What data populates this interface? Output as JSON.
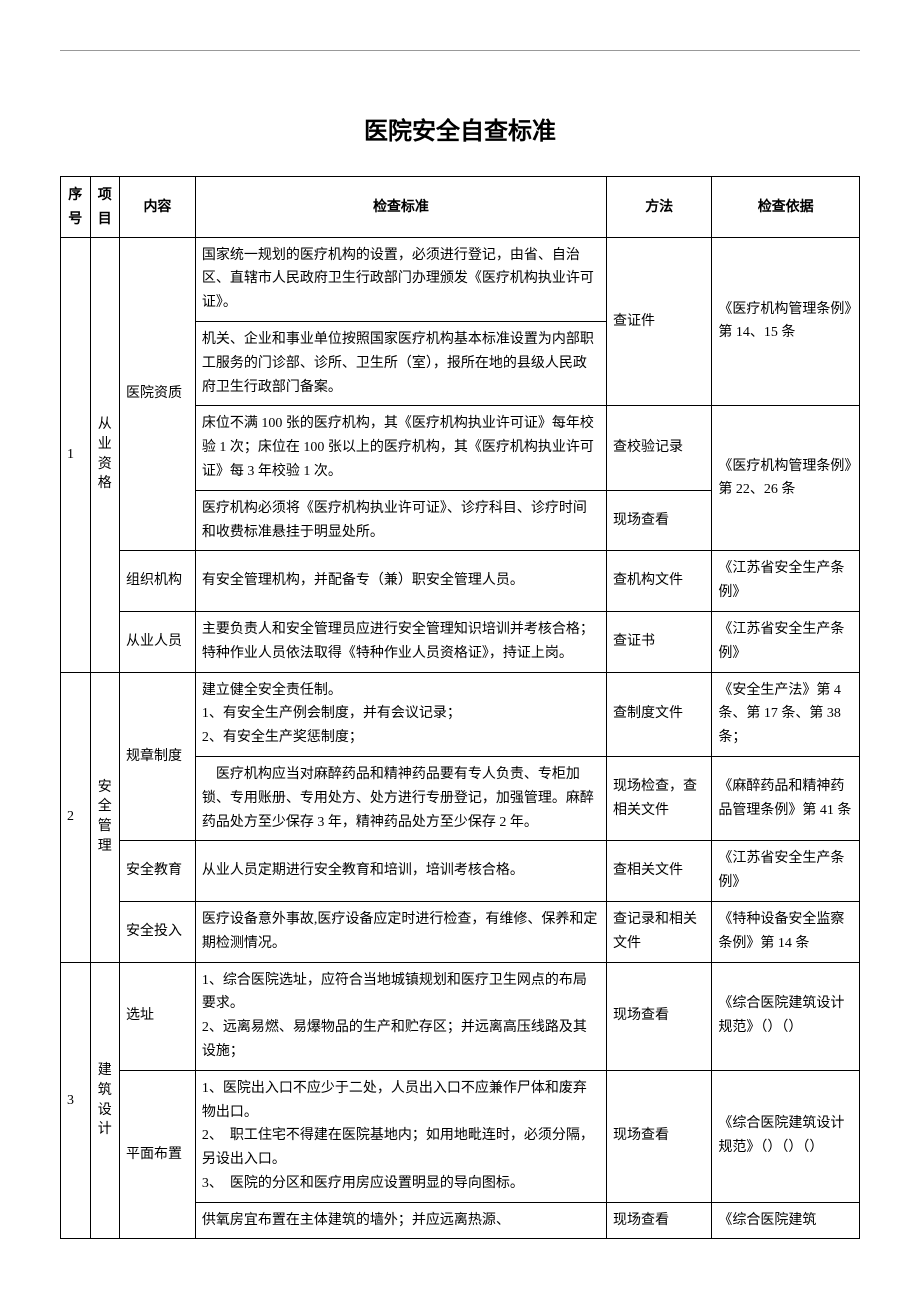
{
  "title": "医院安全自查标准",
  "columns": {
    "seq": "序号",
    "item": "项目",
    "content": "内容",
    "standard": "检查标准",
    "method": "方法",
    "basis": "检查依据"
  },
  "sections": [
    {
      "seq": "1",
      "item": "从业资格",
      "rows": [
        {
          "content": "医院资质",
          "rowspan_content": 4,
          "standard": "国家统一规划的医疗机构的设置，必须进行登记，由省、自治区、直辖市人民政府卫生行政部门办理颁发《医疗机构执业许可证》。",
          "method": "查证件",
          "method_rowspan": 2,
          "basis": "《医疗机构管理条例》第 14、15 条",
          "basis_rowspan": 2
        },
        {
          "standard": "机关、企业和事业单位按照国家医疗机构基本标准设置为内部职工服务的门诊部、诊所、卫生所（室），报所在地的县级人民政府卫生行政部门备案。"
        },
        {
          "standard": "床位不满 100 张的医疗机构，其《医疗机构执业许可证》每年校验 1 次；床位在 100 张以上的医疗机构，其《医疗机构执业许可证》每 3 年校验 1 次。",
          "method": "查校验记录",
          "basis": "《医疗机构管理条例》第 22、26 条",
          "basis_rowspan": 2
        },
        {
          "standard": "医疗机构必须将《医疗机构执业许可证》、诊疗科目、诊疗时间和收费标准悬挂于明显处所。",
          "method": "现场查看"
        },
        {
          "content": "组织机构",
          "standard": "有安全管理机构，并配备专（兼）职安全管理人员。",
          "method": "查机构文件",
          "basis": "《江苏省安全生产条例》"
        },
        {
          "content": "从业人员",
          "standard": "主要负责人和安全管理员应进行安全管理知识培训并考核合格；\n特种作业人员依法取得《特种作业人员资格证》，持证上岗。",
          "method": "查证书",
          "basis": "《江苏省安全生产条例》"
        }
      ]
    },
    {
      "seq": "2",
      "item": "安全管理",
      "rows": [
        {
          "content": "规章制度",
          "rowspan_content": 2,
          "standard": "建立健全安全责任制。\n1、有安全生产例会制度，并有会议记录；\n2、有安全生产奖惩制度；",
          "method": "查制度文件",
          "basis": "《安全生产法》第 4 条、第 17 条、第 38 条；"
        },
        {
          "standard": "　医疗机构应当对麻醉药品和精神药品要有专人负责、专柜加锁、专用账册、专用处方、处方进行专册登记，加强管理。麻醉药品处方至少保存 3 年，精神药品处方至少保存 2 年。",
          "method": "现场检查，查相关文件",
          "basis": "《麻醉药品和精神药品管理条例》第 41 条"
        },
        {
          "content": "安全教育",
          "standard": "从业人员定期进行安全教育和培训，培训考核合格。",
          "method": "查相关文件",
          "basis": "《江苏省安全生产条例》"
        },
        {
          "content": "安全投入",
          "standard": "医疗设备意外事故,医疗设备应定时进行检查，有维修、保养和定期检测情况。",
          "method": "查记录和相关文件",
          "basis": "《特种设备安全监察条例》第 14 条"
        }
      ]
    },
    {
      "seq": "3",
      "item": "建筑设计",
      "rows": [
        {
          "content": "选址",
          "standard": "1、综合医院选址，应符合当地城镇规划和医疗卫生网点的布局要求。\n2、远离易燃、易爆物品的生产和贮存区；并远离高压线路及其设施；",
          "method": "现场查看",
          "basis": "《综合医院建筑设计规范》（）（）"
        },
        {
          "content": "平面布置",
          "rowspan_content": 2,
          "standard": "1、医院出入口不应少于二处，人员出入口不应兼作尸体和废弃物出口。\n2、　职工住宅不得建在医院基地内；如用地毗连时，必须分隔，另设出入口。\n3、　医院的分区和医疗用房应设置明显的导向图标。",
          "method": "现场查看",
          "basis": "《综合医院建筑设计规范》（）（）（）"
        },
        {
          "standard": "供氧房宜布置在主体建筑的墙外；并应远离热源、",
          "method": "现场查看",
          "basis": "《综合医院建筑"
        }
      ]
    }
  ]
}
